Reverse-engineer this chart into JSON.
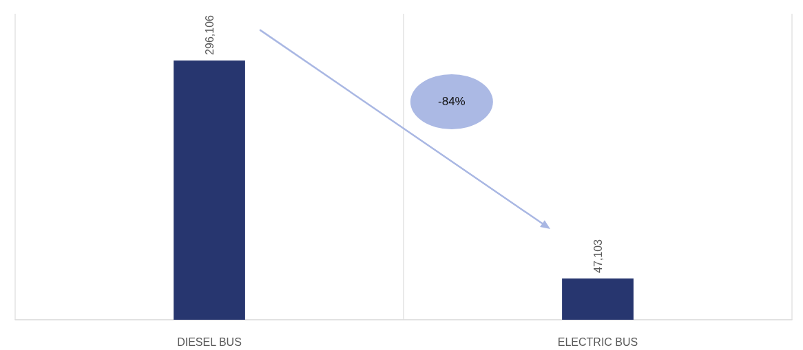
{
  "chart_data": {
    "type": "bar",
    "categories": [
      "DIESEL BUS",
      "ELECTRIC BUS"
    ],
    "values": [
      296106,
      47103
    ],
    "value_labels": [
      "296,106",
      "47,103"
    ],
    "color": "#27366f",
    "grid": "x",
    "annotations": [
      "-84%"
    ]
  }
}
